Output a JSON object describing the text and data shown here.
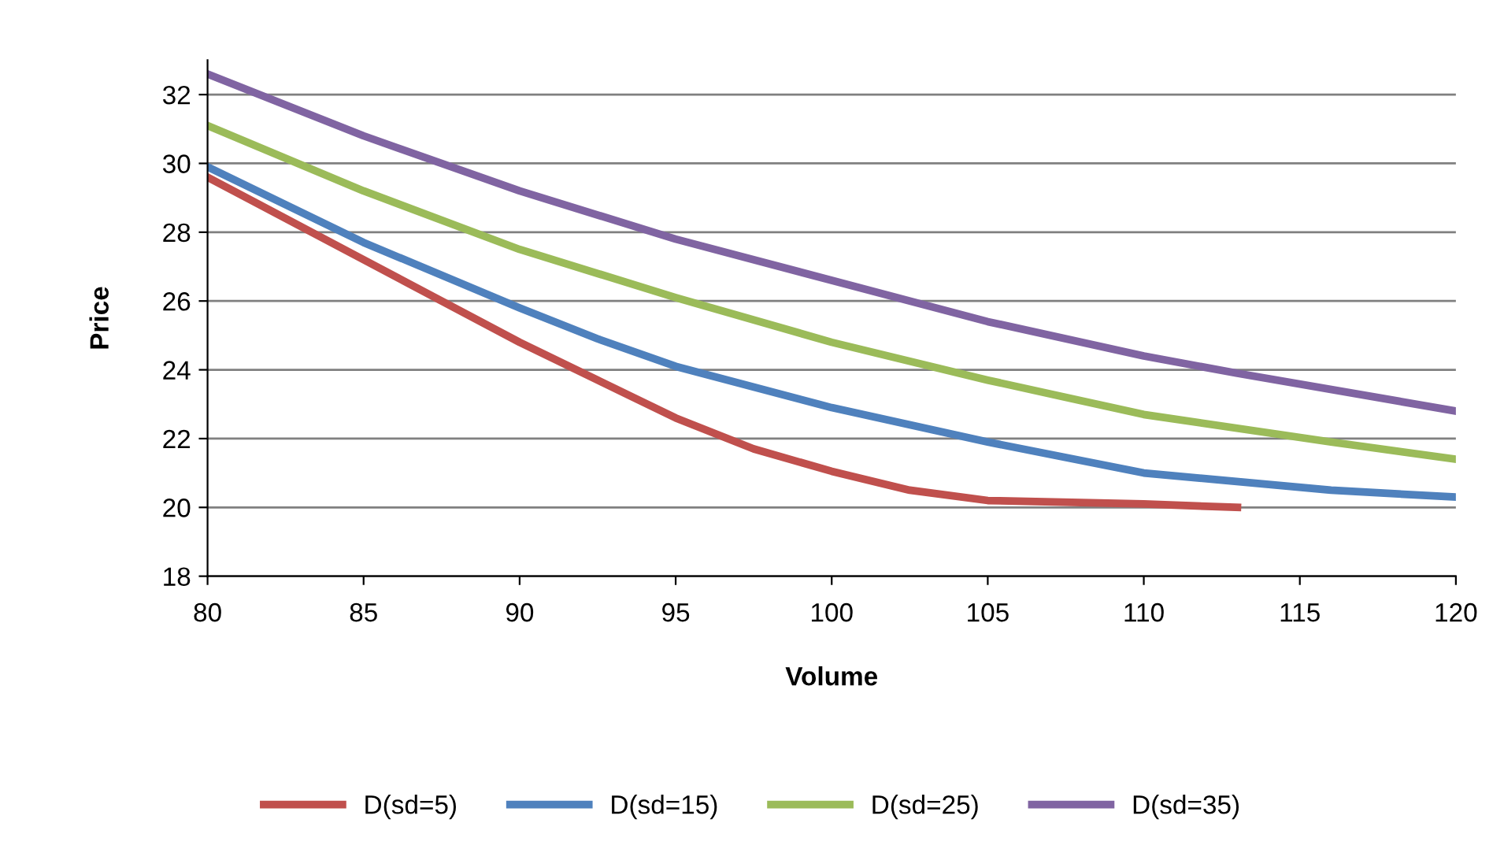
{
  "chart_data": {
    "type": "line",
    "xlabel": "Volume",
    "ylabel": "Price",
    "xlim": [
      80,
      120
    ],
    "xticks": [
      80,
      85,
      90,
      95,
      100,
      105,
      110,
      115,
      120
    ],
    "ylim": [
      18,
      33
    ],
    "yticks": [
      18,
      20,
      22,
      24,
      26,
      28,
      30,
      32
    ],
    "grid": "y",
    "legend": "bottom",
    "marker": "none",
    "line_style": "solid",
    "series": [
      {
        "name": "D(sd=5)",
        "color": "#c0504d",
        "x": [
          80,
          85,
          90,
          92.5,
          95,
          97.5,
          100,
          102.5,
          105,
          110,
          113
        ],
        "values": [
          29.6,
          27.2,
          24.8,
          23.7,
          22.6,
          21.7,
          21.05,
          20.5,
          20.2,
          20.1,
          20.0
        ]
      },
      {
        "name": "D(sd=15)",
        "color": "#4f81bd",
        "x": [
          80,
          85,
          90,
          92.5,
          95,
          100,
          105,
          110,
          116,
          120
        ],
        "values": [
          29.9,
          27.7,
          25.8,
          24.9,
          24.1,
          22.9,
          21.9,
          21.0,
          20.5,
          20.3
        ]
      },
      {
        "name": "D(sd=25)",
        "color": "#9bbb59",
        "x": [
          80,
          85,
          90,
          95,
          100,
          105,
          110,
          116,
          120
        ],
        "values": [
          31.1,
          29.2,
          27.5,
          26.1,
          24.8,
          23.7,
          22.7,
          21.9,
          21.4
        ]
      },
      {
        "name": "D(sd=35)",
        "color": "#8064a2",
        "x": [
          80,
          85,
          90,
          95,
          100,
          105,
          110,
          113,
          120
        ],
        "values": [
          32.6,
          30.8,
          29.2,
          27.8,
          26.6,
          25.4,
          24.4,
          23.9,
          22.8
        ]
      }
    ]
  }
}
